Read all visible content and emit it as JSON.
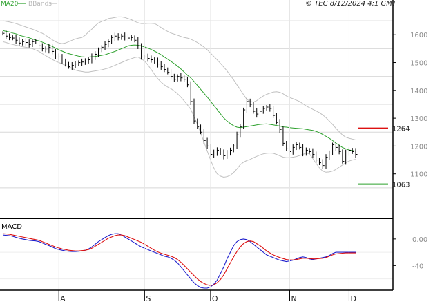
{
  "legend": {
    "ma_label": "MA20",
    "bb_label": "BBands",
    "ma_color": "#2ca02c",
    "bb_color": "#c0c0c0"
  },
  "credit": "© TEC 8/12/2024 4:1 GMT",
  "macd_title": "MACD",
  "colors": {
    "price": "#000000",
    "ma": "#2ca02c",
    "bands": "#c0c0c0",
    "macd_line": "#1f1fcc",
    "signal_line": "#dd1111",
    "resistance": "#dd1111",
    "support": "#2ca02c",
    "grid": "#d8d8d8",
    "axis": "#000000"
  },
  "chart_data": [
    {
      "type": "line",
      "title": "",
      "xlabel": "",
      "ylabel": "",
      "x_ticks": [
        "A",
        "S",
        "O",
        "N",
        "D"
      ],
      "y_ticks": [
        1100,
        1200,
        1300,
        1400,
        1500,
        1600
      ],
      "ylim": [
        1000,
        1680
      ],
      "grid": true,
      "legend_position": "top-left",
      "series": [
        {
          "name": "price",
          "values": [
            1605,
            1595,
            1590,
            1588,
            1580,
            1570,
            1575,
            1572,
            1565,
            1575,
            1578,
            1560,
            1550,
            1545,
            1555,
            1540,
            1520,
            1520,
            1505,
            1495,
            1485,
            1490,
            1495,
            1500,
            1502,
            1505,
            1510,
            1520,
            1530,
            1545,
            1555,
            1565,
            1575,
            1590,
            1595,
            1590,
            1595,
            1592,
            1588,
            1590,
            1580,
            1560,
            1520,
            1520,
            1515,
            1510,
            1505,
            1495,
            1485,
            1475,
            1465,
            1450,
            1440,
            1450,
            1445,
            1440,
            1420,
            1360,
            1290,
            1270,
            1250,
            1220,
            1200,
            1170,
            1175,
            1185,
            1175,
            1165,
            1175,
            1185,
            1200,
            1240,
            1270,
            1330,
            1360,
            1350,
            1325,
            1315,
            1325,
            1335,
            1340,
            1335,
            1310,
            1285,
            1260,
            1210,
            1190,
            1180,
            1195,
            1205,
            1195,
            1175,
            1185,
            1180,
            1170,
            1150,
            1140,
            1130,
            1160,
            1175,
            1205,
            1195,
            1180,
            1145,
            1175,
            1185,
            1180,
            1170
          ]
        },
        {
          "name": "MA20",
          "values": [
            1615,
            1612,
            1610,
            1606,
            1603,
            1598,
            1595,
            1592,
            1589,
            1585,
            1580,
            1578,
            1573,
            1568,
            1563,
            1558,
            1552,
            1546,
            1541,
            1536,
            1532,
            1529,
            1526,
            1523,
            1521,
            1520,
            1520,
            1521,
            1522,
            1524,
            1526,
            1528,
            1532,
            1536,
            1540,
            1545,
            1550,
            1555,
            1560,
            1562,
            1563,
            1562,
            1560,
            1556,
            1552,
            1547,
            1541,
            1535,
            1528,
            1520,
            1512,
            1504,
            1496,
            1487,
            1477,
            1466,
            1455,
            1445,
            1432,
            1418,
            1404,
            1390,
            1376,
            1361,
            1346,
            1331,
            1316,
            1301,
            1290,
            1281,
            1273,
            1268,
            1266,
            1268,
            1270,
            1272,
            1274,
            1276,
            1278,
            1279,
            1280,
            1278,
            1276,
            1274,
            1272,
            1269,
            1268,
            1266,
            1265,
            1264,
            1263,
            1262,
            1260,
            1258,
            1256,
            1253,
            1248,
            1242,
            1235,
            1228,
            1220,
            1211,
            1203,
            1195,
            1190,
            1186,
            1184,
            1182
          ]
        },
        {
          "name": "upper band",
          "values": [
            1650,
            1648,
            1646,
            1643,
            1640,
            1636,
            1632,
            1628,
            1624,
            1620,
            1615,
            1610,
            1605,
            1598,
            1590,
            1582,
            1575,
            1570,
            1568,
            1570,
            1575,
            1580,
            1585,
            1588,
            1590,
            1598,
            1610,
            1620,
            1632,
            1642,
            1648,
            1652,
            1658,
            1660,
            1662,
            1664,
            1664,
            1662,
            1658,
            1654,
            1648,
            1643,
            1640,
            1640,
            1641,
            1641,
            1640,
            1634,
            1626,
            1618,
            1612,
            1606,
            1602,
            1598,
            1594,
            1590,
            1588,
            1584,
            1578,
            1572,
            1564,
            1556,
            1546,
            1534,
            1522,
            1510,
            1497,
            1484,
            1470,
            1454,
            1438,
            1420,
            1403,
            1385,
            1368,
            1360,
            1358,
            1363,
            1372,
            1380,
            1386,
            1390,
            1394,
            1395,
            1393,
            1388,
            1380,
            1374,
            1370,
            1365,
            1360,
            1352,
            1344,
            1338,
            1332,
            1326,
            1320,
            1312,
            1302,
            1290,
            1278,
            1264,
            1252,
            1240,
            1232,
            1228,
            1225,
            1222
          ]
        },
        {
          "name": "lower band",
          "values": [
            1575,
            1572,
            1568,
            1565,
            1562,
            1560,
            1557,
            1555,
            1553,
            1550,
            1545,
            1540,
            1532,
            1525,
            1518,
            1511,
            1505,
            1500,
            1495,
            1490,
            1485,
            1479,
            1473,
            1470,
            1468,
            1466,
            1466,
            1468,
            1470,
            1472,
            1474,
            1477,
            1480,
            1485,
            1490,
            1495,
            1500,
            1505,
            1510,
            1514,
            1518,
            1520,
            1514,
            1505,
            1492,
            1475,
            1458,
            1442,
            1430,
            1420,
            1412,
            1406,
            1398,
            1388,
            1376,
            1362,
            1348,
            1332,
            1306,
            1278,
            1248,
            1215,
            1182,
            1150,
            1122,
            1100,
            1092,
            1088,
            1090,
            1095,
            1105,
            1118,
            1133,
            1142,
            1148,
            1152,
            1158,
            1163,
            1168,
            1172,
            1174,
            1175,
            1174,
            1170,
            1165,
            1160,
            1158,
            1158,
            1160,
            1162,
            1166,
            1170,
            1175,
            1172,
            1155,
            1138,
            1122,
            1110,
            1106,
            1107,
            1110,
            1116,
            1124,
            1132,
            1140,
            1146,
            1150,
            1152
          ]
        }
      ],
      "levels": [
        {
          "name": "resistance",
          "value": 1264
        },
        {
          "name": "support",
          "value": 1063
        }
      ]
    },
    {
      "type": "line",
      "title": "MACD",
      "xlabel": "",
      "ylabel": "",
      "y_ticks": [
        0,
        -40
      ],
      "ylim": [
        -75,
        30
      ],
      "grid": false,
      "series": [
        {
          "name": "MACD",
          "values": [
            6.0,
            5.5,
            5.0,
            4.0,
            2.5,
            1.0,
            0.0,
            -1.0,
            -2.0,
            -2.5,
            -3.0,
            -4.0,
            -6.0,
            -8.0,
            -10.0,
            -12.0,
            -14.5,
            -16.0,
            -17.0,
            -18.0,
            -18.5,
            -19.0,
            -19.0,
            -18.5,
            -18.0,
            -17.0,
            -15.0,
            -12.0,
            -8.0,
            -4.0,
            -1.0,
            2.0,
            5.0,
            7.0,
            8.0,
            8.0,
            6.0,
            3.0,
            0.0,
            -3.0,
            -6.0,
            -9.0,
            -12.0,
            -14.0,
            -16.0,
            -18.0,
            -20.0,
            -22.0,
            -24.0,
            -26.0,
            -27.0,
            -29.0,
            -32.0,
            -36.0,
            -42.0,
            -48.0,
            -54.0,
            -60.0,
            -66.0,
            -70.0,
            -73.0,
            -74.0,
            -74.0,
            -72.0,
            -68.0,
            -62.0,
            -52.0,
            -42.0,
            -30.0,
            -20.0,
            -10.0,
            -4.0,
            -1.0,
            0.0,
            -1.0,
            -4.0,
            -8.0,
            -12.0,
            -16.0,
            -20.0,
            -24.0,
            -26.0,
            -28.0,
            -30.0,
            -32.0,
            -33.0,
            -34.0,
            -33.0,
            -32.0,
            -30.0,
            -28.0,
            -27.0,
            -28.0,
            -30.0,
            -31.0,
            -30.0,
            -29.0,
            -28.0,
            -27.0,
            -25.0,
            -22.0,
            -20.0,
            -20.0,
            -20.0,
            -20.0,
            -20.0,
            -20.0,
            -20.0
          ]
        },
        {
          "name": "Signal",
          "values": [
            8.0,
            7.5,
            7.0,
            6.0,
            5.0,
            4.0,
            3.0,
            2.0,
            1.0,
            0.0,
            -1.0,
            -2.0,
            -4.0,
            -6.0,
            -8.0,
            -10.0,
            -12.0,
            -13.5,
            -15.0,
            -16.0,
            -17.0,
            -17.5,
            -18.0,
            -18.0,
            -17.5,
            -17.0,
            -16.0,
            -14.0,
            -11.0,
            -8.0,
            -5.0,
            -2.0,
            1.0,
            3.0,
            5.0,
            6.0,
            6.0,
            5.0,
            3.0,
            1.0,
            -1.0,
            -3.0,
            -5.0,
            -8.0,
            -11.0,
            -14.0,
            -17.0,
            -19.5,
            -21.5,
            -23.0,
            -24.5,
            -26.0,
            -28.0,
            -31.0,
            -35.0,
            -40.0,
            -45.0,
            -50.0,
            -55.0,
            -60.0,
            -64.0,
            -67.0,
            -69.0,
            -70.0,
            -69.0,
            -66.0,
            -61.0,
            -54.0,
            -45.0,
            -36.0,
            -27.0,
            -19.0,
            -12.0,
            -7.0,
            -4.0,
            -3.0,
            -4.0,
            -7.0,
            -10.0,
            -14.0,
            -18.0,
            -21.0,
            -24.0,
            -26.0,
            -28.0,
            -29.5,
            -31.0,
            -31.5,
            -31.5,
            -31.0,
            -30.0,
            -29.0,
            -29.0,
            -29.5,
            -30.0,
            -30.0,
            -29.5,
            -29.0,
            -28.0,
            -26.0,
            -24.0,
            -22.5,
            -22.0,
            -21.5,
            -21.0,
            -21.0,
            -21.0,
            -21.0
          ]
        }
      ]
    }
  ]
}
